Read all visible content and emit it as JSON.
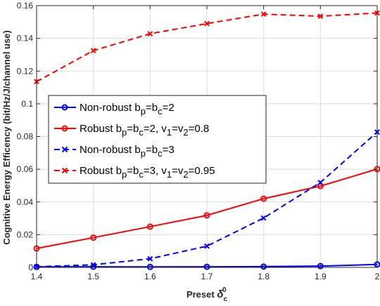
{
  "chart_data": {
    "type": "line",
    "xlabel": {
      "main": "Preset ",
      "delta": "δ",
      "sub": "c",
      "sup": "0"
    },
    "ylabel": "Cognitive Energy Efficency (bit/Hz/J/channel use)",
    "xlim": [
      1.4,
      2.0
    ],
    "ylim": [
      0,
      0.16
    ],
    "xticks": [
      "1.4",
      "1.5",
      "1.6",
      "1.7",
      "1.8",
      "1.9",
      "2"
    ],
    "yticks": [
      "0",
      "0.02",
      "0.04",
      "0.06",
      "0.08",
      "0.1",
      "0.12",
      "0.14",
      "0.16"
    ],
    "grid": true,
    "legend_position": "center-left",
    "x": [
      1.4,
      1.5,
      1.6,
      1.7,
      1.8,
      1.9,
      2.0
    ],
    "series": [
      {
        "name": "Non-robust b_p=b_c=2",
        "legend": {
          "a": "Non-robust b",
          "b": "p",
          "c": "=b",
          "d": "c",
          "e": "=2"
        },
        "color": "#0000ff",
        "dash": "solid",
        "marker": "circle",
        "values": [
          0.0003,
          0.0004,
          0.0003,
          0.0004,
          0.0005,
          0.0008,
          0.0018
        ]
      },
      {
        "name": "Robust b_p=b_c=2, v_1=v_2=0.8",
        "legend": {
          "a": "Robust b",
          "b": "p",
          "c": "=b",
          "d": "c",
          "e": "=2, v",
          "f": "1",
          "g": "=v",
          "h": "2",
          "i": "=0.8"
        },
        "color": "#ff0000",
        "dash": "solid",
        "marker": "circle",
        "values": [
          0.0116,
          0.0182,
          0.0249,
          0.0318,
          0.042,
          0.0497,
          0.0601
        ]
      },
      {
        "name": "Non-robust b_p=b_c=3",
        "legend": {
          "a": "Non-robust b",
          "b": "p",
          "c": "=b",
          "d": "c",
          "e": "=3"
        },
        "color": "#0000ff",
        "dash": "dashed",
        "marker": "x",
        "values": [
          0.0004,
          0.0016,
          0.0053,
          0.013,
          0.0302,
          0.0519,
          0.0827
        ]
      },
      {
        "name": "Robust b_p=b_c=3, v_1=v_2=0.95",
        "legend": {
          "a": "Robust b",
          "b": "p",
          "c": "=b",
          "d": "c",
          "e": "=3, v",
          "f": "1",
          "g": "=v",
          "h": "2",
          "i": "=0.95"
        },
        "color": "#ff0000",
        "dash": "dashed",
        "marker": "x",
        "values": [
          0.1135,
          0.1325,
          0.1428,
          0.149,
          0.1548,
          0.1535,
          0.1555
        ]
      }
    ]
  }
}
